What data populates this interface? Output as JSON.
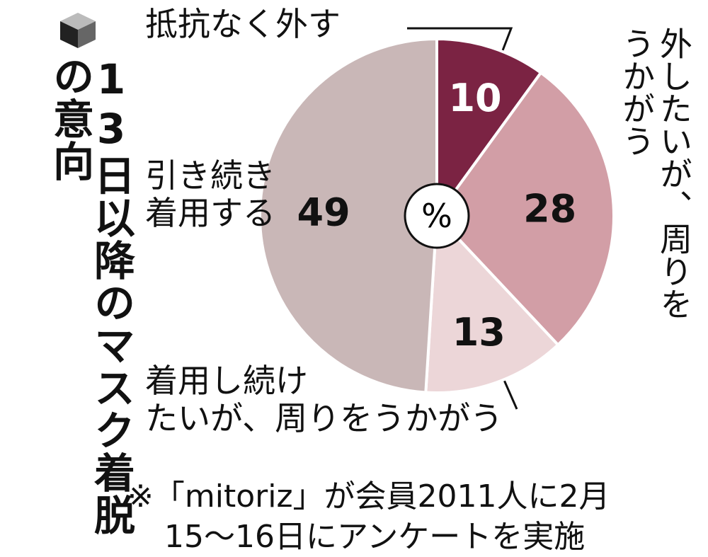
{
  "chart_data": {
    "type": "pie",
    "title": "13日以降のマスク着脱の意向",
    "center_label": "%",
    "categories": [
      "抵抗なく外す",
      "外したいが、周りを\nうかがう",
      "着用し続け\nたいが、周りをうかがう",
      "引き続き\n着用する"
    ],
    "values": [
      10,
      28,
      13,
      49
    ],
    "colors": [
      "#7b2343",
      "#d29ea6",
      "#ecd6d8",
      "#c9b7b7"
    ],
    "note": [
      "※「mitoriz」が会員2011人に2月",
      "15～16日にアンケートを実施"
    ]
  }
}
